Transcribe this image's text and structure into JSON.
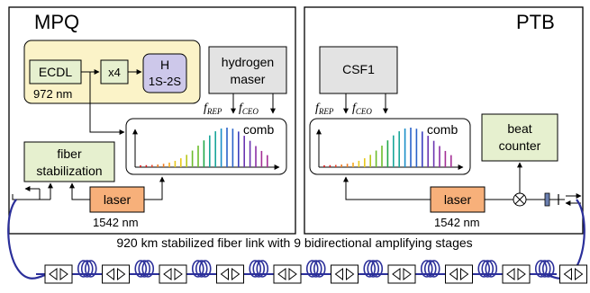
{
  "colors": {
    "yellow_box": "#fbf3c8",
    "green_box": "#e6f0cf",
    "purple_box": "#cdc8ea",
    "gray_box": "#e3e3e3",
    "laser_box": "#f7b07a",
    "fiber_coil": "#2b2f9a"
  },
  "labs": {
    "left": "MPQ",
    "right": "PTB"
  },
  "mpq": {
    "ecdl": "ECDL",
    "ecdl_wavelength": "972 nm",
    "multiplier": "x4",
    "h_line1": "H",
    "h_line2": "1S-2S",
    "maser_line1": "hydrogen",
    "maser_line2": "maser",
    "f_rep": "f",
    "f_rep_sub": "REP",
    "f_ceo": "f",
    "f_ceo_sub": "CEO",
    "comb": "comb",
    "fiber_line1": "fiber",
    "fiber_line2": "stabilization",
    "laser": "laser",
    "laser_wavelength": "1542 nm"
  },
  "ptb": {
    "csf1": "CSF1",
    "f_rep": "f",
    "f_rep_sub": "REP",
    "f_ceo": "f",
    "f_ceo_sub": "CEO",
    "comb": "comb",
    "beat_line1": "beat",
    "beat_line2": "counter",
    "laser": "laser",
    "laser_wavelength": "1542 nm"
  },
  "link_caption": "920 km stabilized fiber link with 9 bidirectional amplifying stages",
  "amplifier_icon": "bidirectional-amplifier-icon",
  "amplifier_count": 9,
  "comb_spectrum_colors": [
    "#d81b1b",
    "#e8442a",
    "#f07b20",
    "#f6a81c",
    "#e8c81c",
    "#b9c81c",
    "#6cbc2c",
    "#21a84a",
    "#1aa69a",
    "#1b8fc8",
    "#2a63c9",
    "#3b3fbf",
    "#6a35b0",
    "#8b2fa6",
    "#a43096"
  ]
}
